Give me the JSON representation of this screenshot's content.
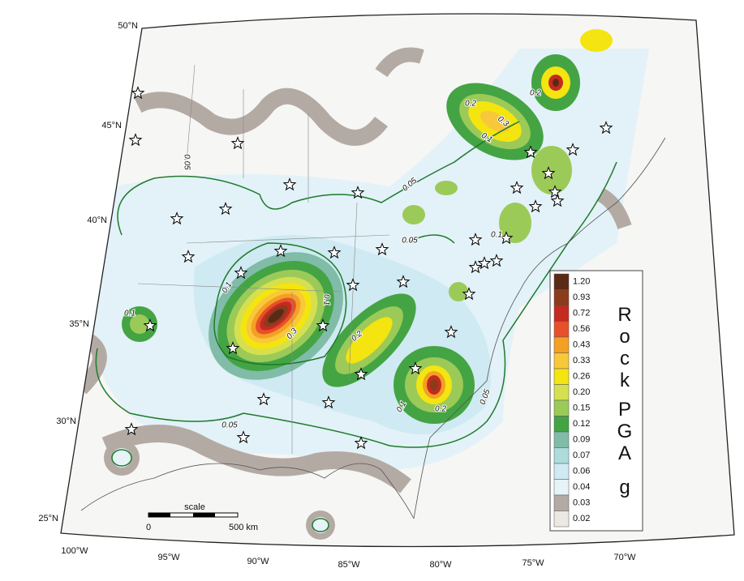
{
  "map": {
    "latitude_labels": [
      "50°N",
      "45°N",
      "40°N",
      "35°N",
      "30°N",
      "25°N"
    ],
    "longitude_labels": [
      "100°W",
      "95°W",
      "90°W",
      "85°W",
      "80°W",
      "75°W",
      "70°W"
    ],
    "contour_labels": [
      "0.05",
      "0.05",
      "0.05",
      "0.05",
      "0.05",
      "0.1",
      "0.1",
      "0.1",
      "0.1",
      "0.1",
      "0.1",
      "0.2",
      "0.2",
      "0.2",
      "0.2",
      "0.3",
      "0.3"
    ],
    "scale": {
      "title": "scale",
      "start": "0",
      "end": "500 km"
    }
  },
  "legend": {
    "title": [
      "Rock",
      "PGA"
    ],
    "unit": "g",
    "levels": [
      {
        "label": "1.20",
        "color": "#5a2a16"
      },
      {
        "label": "0.93",
        "color": "#8a3c1c"
      },
      {
        "label": "0.72",
        "color": "#c42a20"
      },
      {
        "label": "0.56",
        "color": "#e8502c"
      },
      {
        "label": "0.43",
        "color": "#f4a024"
      },
      {
        "label": "0.33",
        "color": "#f8c83a"
      },
      {
        "label": "0.26",
        "color": "#f4e410"
      },
      {
        "label": "0.20",
        "color": "#d4e050"
      },
      {
        "label": "0.15",
        "color": "#9cca58"
      },
      {
        "label": "0.12",
        "color": "#44a444"
      },
      {
        "label": "0.09",
        "color": "#80bca8"
      },
      {
        "label": "0.07",
        "color": "#acdcdc"
      },
      {
        "label": "0.06",
        "color": "#cfeaf2"
      },
      {
        "label": "0.04",
        "color": "#e6f4f8"
      },
      {
        "label": "0.03",
        "color": "#b4aaa4"
      },
      {
        "label": "0.02",
        "color": "#ece8e4"
      }
    ]
  }
}
